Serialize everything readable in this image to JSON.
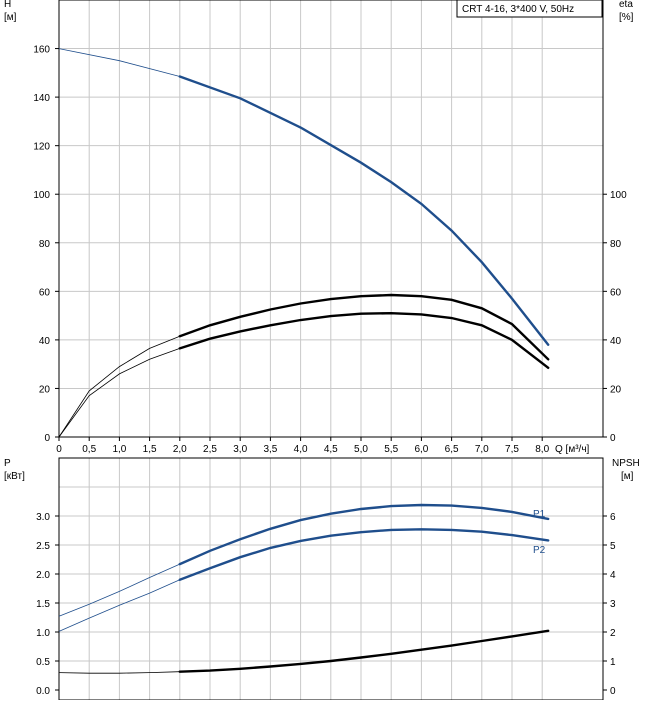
{
  "legend_label": "CRT 4-16, 3*400 V, 50Hz",
  "top_chart": {
    "left_axis_label": [
      "H",
      "[м]"
    ],
    "right_axis_label": [
      "eta",
      "[%]"
    ],
    "x_axis_label": "Q [м³/ч]",
    "x_ticks": [
      "0",
      "0,5",
      "1,0",
      "1,5",
      "2,0",
      "2,5",
      "3,0",
      "3,5",
      "4,0",
      "4,5",
      "5,0",
      "5,5",
      "6,0",
      "6,5",
      "7,0",
      "7,5",
      "8,0"
    ],
    "left_ticks": [
      "0",
      "20",
      "40",
      "60",
      "80",
      "100",
      "120",
      "140",
      "160"
    ],
    "right_ticks": [
      "0",
      "20",
      "40",
      "60",
      "80",
      "100"
    ]
  },
  "bottom_chart": {
    "left_axis_label": [
      "P",
      "[кВт]"
    ],
    "right_axis_label": [
      "NPSH",
      "[м]"
    ],
    "left_ticks": [
      "0.0",
      "0.5",
      "1.0",
      "1.5",
      "2.0",
      "2.5",
      "3.0"
    ],
    "right_ticks": [
      "0",
      "1",
      "2",
      "3",
      "4",
      "5",
      "6"
    ],
    "series_labels": [
      "P1",
      "P2"
    ]
  },
  "colors": {
    "blue": "#1f4e8c",
    "black": "#000000",
    "grid": "#c8c8c8"
  },
  "chart_data": [
    {
      "type": "line",
      "x_range": [
        0,
        8.5
      ],
      "y_left_range": [
        0,
        180
      ],
      "y_right_range": [
        0,
        180
      ],
      "grid": true,
      "series": [
        {
          "axis": "left",
          "color": "#1f4e8c",
          "operating_from": 2.0,
          "x": [
            0,
            1.0,
            2.0,
            3.0,
            4.0,
            5.0,
            5.5,
            6.0,
            6.5,
            7.0,
            7.5,
            8.1
          ],
          "y": [
            160,
            155,
            148.5,
            139.5,
            127.5,
            113,
            105,
            96,
            85,
            72,
            57,
            38
          ]
        },
        {
          "axis": "right",
          "color": "#000000",
          "operating_from": 2.0,
          "x": [
            0,
            0.5,
            1.0,
            1.5,
            2.0,
            2.5,
            3.0,
            3.5,
            4.0,
            4.5,
            5.0,
            5.5,
            6.0,
            6.5,
            7.0,
            7.5,
            8.1
          ],
          "y": [
            0,
            19,
            29,
            36.5,
            41.5,
            46,
            49.5,
            52.5,
            55,
            56.8,
            58,
            58.5,
            58,
            56.5,
            53,
            46.5,
            32
          ]
        },
        {
          "axis": "right",
          "color": "#000000",
          "operating_from": 2.0,
          "x": [
            0,
            0.5,
            1.0,
            1.5,
            2.0,
            2.5,
            3.0,
            3.5,
            4.0,
            4.5,
            5.0,
            5.5,
            6.0,
            6.5,
            7.0,
            7.5,
            8.1
          ],
          "y": [
            0,
            17,
            26,
            32,
            36.5,
            40.5,
            43.5,
            46,
            48.2,
            49.8,
            50.8,
            51,
            50.5,
            49,
            46,
            40,
            28.5
          ]
        }
      ]
    },
    {
      "type": "line",
      "x_range": [
        0,
        8.5
      ],
      "y_left_range": [
        0,
        3.5
      ],
      "y_right_range": [
        0,
        7
      ],
      "grid": true,
      "series": [
        {
          "name": "P1",
          "axis": "left",
          "color": "#1f4e8c",
          "operating_from": 2.0,
          "x": [
            0,
            0.5,
            1.0,
            1.5,
            2.0,
            2.5,
            3.0,
            3.5,
            4.0,
            4.5,
            5.0,
            5.5,
            6.0,
            6.5,
            7.0,
            7.5,
            8.1
          ],
          "y": [
            1.27,
            1.48,
            1.7,
            1.94,
            2.17,
            2.4,
            2.6,
            2.78,
            2.93,
            3.04,
            3.12,
            3.17,
            3.19,
            3.18,
            3.14,
            3.07,
            2.95
          ]
        },
        {
          "name": "P2",
          "axis": "left",
          "color": "#1f4e8c",
          "operating_from": 2.0,
          "x": [
            0,
            0.5,
            1.0,
            1.5,
            2.0,
            2.5,
            3.0,
            3.5,
            4.0,
            4.5,
            5.0,
            5.5,
            6.0,
            6.5,
            7.0,
            7.5,
            8.1
          ],
          "y": [
            1.01,
            1.24,
            1.46,
            1.67,
            1.9,
            2.1,
            2.29,
            2.45,
            2.57,
            2.66,
            2.72,
            2.76,
            2.77,
            2.76,
            2.73,
            2.67,
            2.58
          ]
        },
        {
          "axis": "right",
          "color": "#000000",
          "operating_from": 2.0,
          "x": [
            0,
            0.5,
            1.0,
            1.5,
            2.0,
            2.5,
            3.0,
            3.5,
            4.0,
            4.5,
            5.0,
            5.5,
            6.0,
            6.5,
            7.0,
            7.5,
            8.1
          ],
          "y": [
            0.6,
            0.58,
            0.58,
            0.6,
            0.63,
            0.67,
            0.73,
            0.81,
            0.9,
            1.0,
            1.12,
            1.25,
            1.39,
            1.53,
            1.69,
            1.85,
            2.04
          ]
        }
      ]
    }
  ]
}
